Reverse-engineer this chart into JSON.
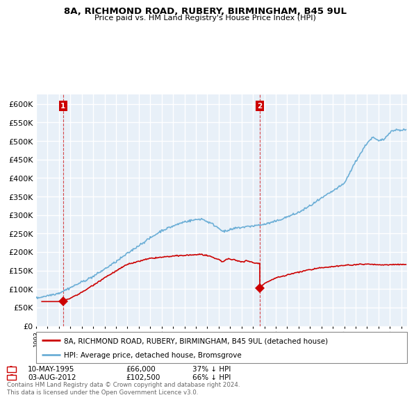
{
  "title": "8A, RICHMOND ROAD, RUBERY, BIRMINGHAM, B45 9UL",
  "subtitle": "Price paid vs. HM Land Registry's House Price Index (HPI)",
  "ylabel_ticks": [
    "£0",
    "£50K",
    "£100K",
    "£150K",
    "£200K",
    "£250K",
    "£300K",
    "£350K",
    "£400K",
    "£450K",
    "£500K",
    "£550K",
    "£600K"
  ],
  "ytick_vals": [
    0,
    50000,
    100000,
    150000,
    200000,
    250000,
    300000,
    350000,
    400000,
    450000,
    500000,
    550000,
    600000
  ],
  "ylim": [
    0,
    625000
  ],
  "hpi_color": "#6baed6",
  "price_color": "#cc0000",
  "hpi_fill_color": "#ddeeff",
  "transaction1": {
    "date_num": 1995.36,
    "price": 66000,
    "label": "1",
    "pct": "37% ↓ HPI",
    "date_str": "10-MAY-1995"
  },
  "transaction2": {
    "date_num": 2012.59,
    "price": 102500,
    "label": "2",
    "pct": "66% ↓ HPI",
    "date_str": "03-AUG-2012"
  },
  "legend_property": "8A, RICHMOND ROAD, RUBERY, BIRMINGHAM, B45 9UL (detached house)",
  "legend_hpi": "HPI: Average price, detached house, Bromsgrove",
  "footer": "Contains HM Land Registry data © Crown copyright and database right 2024.\nThis data is licensed under the Open Government Licence v3.0.",
  "background_color": "#e8f0f8",
  "grid_color": "#ffffff",
  "hatch_color": "#d0d8e0",
  "xmin": 1993,
  "xmax": 2025.5
}
